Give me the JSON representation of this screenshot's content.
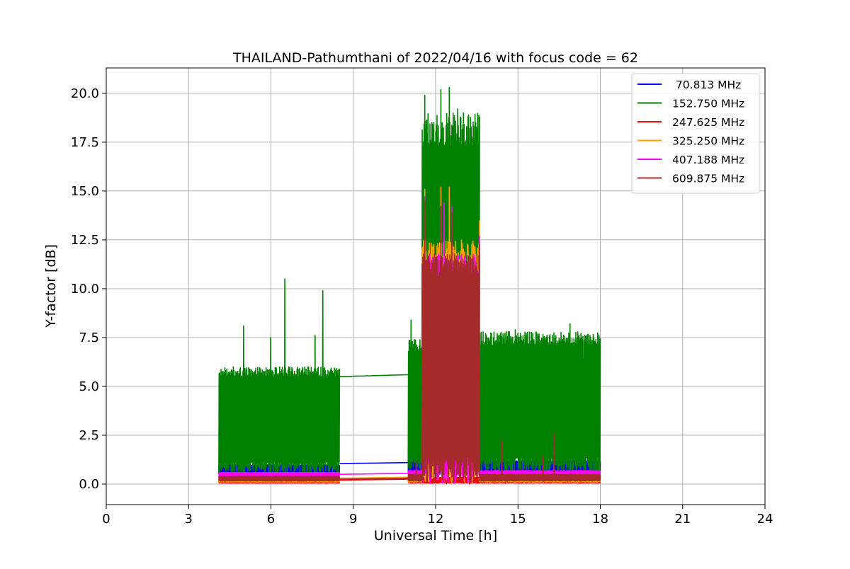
{
  "chart_data": {
    "type": "line",
    "title": "THAILAND-Pathumthani of 2022/04/16 with focus code = 62",
    "xlabel": "Universal Time [h]",
    "ylabel": "Y-factor [dB]",
    "xlim": [
      0,
      24
    ],
    "ylim": [
      -1.05,
      21.3
    ],
    "xticks": [
      0,
      3,
      6,
      9,
      12,
      15,
      18,
      21,
      24
    ],
    "yticks": [
      0.0,
      2.5,
      5.0,
      7.5,
      10.0,
      12.5,
      15.0,
      17.5,
      20.0
    ],
    "xtick_labels": [
      "0",
      "3",
      "6",
      "9",
      "12",
      "15",
      "18",
      "21",
      "24"
    ],
    "ytick_labels": [
      "0.0",
      "2.5",
      "5.0",
      "7.5",
      "10.0",
      "12.5",
      "15.0",
      "17.5",
      "20.0"
    ],
    "grid": true,
    "legend_position": "top-right",
    "series": [
      {
        "name": " 70.813 MHz",
        "color": "#0000ff",
        "segments": [
          {
            "x_start": 4.1,
            "x_end": 8.5,
            "low": 0.5,
            "high": 1.0,
            "peaks": [
              [
                6.5,
                1.5
              ],
              [
                8.3,
                1.9
              ]
            ]
          },
          {
            "x_start": 8.5,
            "x_end": 11.0,
            "low": 1.05,
            "high": 1.1,
            "peaks": []
          },
          {
            "x_start": 11.0,
            "x_end": 18.0,
            "low": 0.5,
            "high": 1.2,
            "peaks": [
              [
                11.7,
                2.4
              ],
              [
                12.5,
                1.6
              ],
              [
                16.0,
                1.6
              ]
            ]
          }
        ]
      },
      {
        "name": "152.750 MHz",
        "color": "#008000",
        "segments": [
          {
            "x_start": 4.1,
            "x_end": 8.5,
            "low": 0.5,
            "high": 6.0,
            "peaks": [
              [
                5.0,
                8.1
              ],
              [
                6.5,
                10.5
              ],
              [
                6.0,
                7.5
              ],
              [
                7.6,
                7.6
              ],
              [
                7.9,
                9.9
              ]
            ]
          },
          {
            "x_start": 8.5,
            "x_end": 11.0,
            "low": 5.5,
            "high": 5.6,
            "peaks": []
          },
          {
            "x_start": 11.0,
            "x_end": 11.5,
            "low": 0.5,
            "high": 7.4,
            "peaks": [
              [
                11.1,
                8.4
              ]
            ]
          },
          {
            "x_start": 11.5,
            "x_end": 13.6,
            "low": 0.0,
            "high": 19.0,
            "peaks": [
              [
                11.6,
                19.9
              ],
              [
                12.2,
                20.2
              ],
              [
                12.5,
                20.3
              ],
              [
                12.8,
                19.2
              ],
              [
                13.6,
                18.8
              ]
            ]
          },
          {
            "x_start": 13.6,
            "x_end": 18.0,
            "low": 0.5,
            "high": 7.8,
            "peaks": [
              [
                14.9,
                7.9
              ],
              [
                16.9,
                8.2
              ],
              [
                17.4,
                6.4
              ]
            ]
          }
        ]
      },
      {
        "name": "247.625 MHz",
        "color": "#ff0000",
        "segments": [
          {
            "x_start": 4.1,
            "x_end": 8.5,
            "low": 0.05,
            "high": 0.25,
            "peaks": []
          },
          {
            "x_start": 8.5,
            "x_end": 11.0,
            "low": 0.2,
            "high": 0.25,
            "peaks": []
          },
          {
            "x_start": 11.0,
            "x_end": 18.0,
            "low": 0.05,
            "high": 0.35,
            "peaks": []
          }
        ]
      },
      {
        "name": "325.250 MHz",
        "color": "#ffa500",
        "segments": [
          {
            "x_start": 4.1,
            "x_end": 8.5,
            "low": 0.1,
            "high": 0.3,
            "peaks": []
          },
          {
            "x_start": 8.5,
            "x_end": 11.0,
            "low": 0.3,
            "high": 0.35,
            "peaks": []
          },
          {
            "x_start": 11.0,
            "x_end": 11.5,
            "low": 0.1,
            "high": 0.4,
            "peaks": []
          },
          {
            "x_start": 11.5,
            "x_end": 13.6,
            "low": 0.0,
            "high": 12.5,
            "peaks": [
              [
                11.6,
                15.1
              ],
              [
                12.2,
                15.2
              ],
              [
                12.5,
                15.2
              ],
              [
                13.6,
                13.5
              ]
            ]
          },
          {
            "x_start": 13.6,
            "x_end": 18.0,
            "low": 0.1,
            "high": 0.4,
            "peaks": []
          }
        ]
      },
      {
        "name": "407.188 MHz",
        "color": "#ff00ff",
        "segments": [
          {
            "x_start": 4.1,
            "x_end": 8.5,
            "low": 0.3,
            "high": 0.6,
            "peaks": []
          },
          {
            "x_start": 8.5,
            "x_end": 11.0,
            "low": 0.5,
            "high": 0.55,
            "peaks": []
          },
          {
            "x_start": 11.0,
            "x_end": 11.5,
            "low": 0.3,
            "high": 0.7,
            "peaks": []
          },
          {
            "x_start": 11.5,
            "x_end": 13.6,
            "low": 0.0,
            "high": 11.8,
            "peaks": [
              [
                11.6,
                14.7
              ],
              [
                12.3,
                14.4
              ],
              [
                12.6,
                14.2
              ],
              [
                13.6,
                12.7
              ]
            ]
          },
          {
            "x_start": 13.6,
            "x_end": 18.0,
            "low": 0.3,
            "high": 0.7,
            "peaks": []
          }
        ]
      },
      {
        "name": "609.875 MHz",
        "color": "#a52a2a",
        "segments": [
          {
            "x_start": 4.1,
            "x_end": 8.5,
            "low": 0.15,
            "high": 0.4,
            "peaks": []
          },
          {
            "x_start": 8.5,
            "x_end": 11.0,
            "low": 0.25,
            "high": 0.3,
            "peaks": []
          },
          {
            "x_start": 11.0,
            "x_end": 11.5,
            "low": 0.15,
            "high": 0.5,
            "peaks": [
              [
                11.3,
                1.2
              ]
            ]
          },
          {
            "x_start": 11.5,
            "x_end": 13.6,
            "low": 0.0,
            "high": 11.8,
            "peaks": [
              [
                11.6,
                14.5
              ],
              [
                12.2,
                14.2
              ],
              [
                12.6,
                13.9
              ],
              [
                13.6,
                12.3
              ]
            ]
          },
          {
            "x_start": 13.6,
            "x_end": 18.0,
            "low": 0.15,
            "high": 0.5,
            "peaks": [
              [
                14.4,
                2.2
              ],
              [
                16.3,
                2.6
              ],
              [
                15.9,
                1.4
              ]
            ]
          }
        ]
      }
    ]
  }
}
